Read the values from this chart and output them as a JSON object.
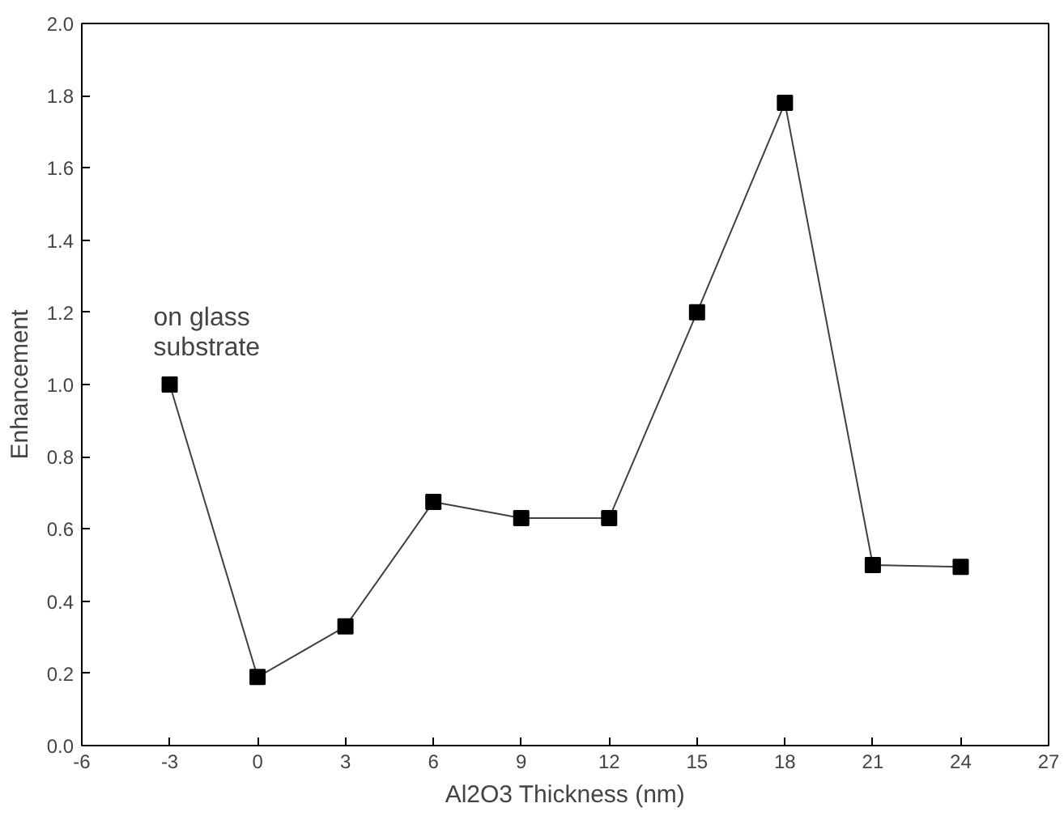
{
  "chart_data": {
    "type": "line",
    "xlabel": "Al2O3 Thickness (nm)",
    "ylabel": "Enhancement",
    "x": [
      -3,
      0,
      3,
      6,
      9,
      12,
      15,
      18,
      21,
      24
    ],
    "series": [
      {
        "color": "#000000",
        "values": [
          1.0,
          0.19,
          0.33,
          0.675,
          0.63,
          0.63,
          1.2,
          1.78,
          0.5,
          0.495
        ]
      }
    ],
    "xlim": [
      -6,
      27
    ],
    "xticks": [
      -6,
      -3,
      0,
      3,
      6,
      9,
      12,
      15,
      18,
      21,
      24,
      27
    ],
    "ylim": [
      0,
      2.0
    ],
    "yticks": [
      {
        "value": 0,
        "label": "0.0"
      },
      {
        "value": 0.2,
        "label": "0.2"
      },
      {
        "value": 0.4,
        "label": "0.4"
      },
      {
        "value": 0.6,
        "label": "0.6"
      },
      {
        "value": 0.8,
        "label": "0.8"
      },
      {
        "value": 1.0,
        "label": "1.0"
      },
      {
        "value": 1.2,
        "label": "1.2"
      },
      {
        "value": 1.4,
        "label": "1.4"
      },
      {
        "value": 1.6,
        "label": "1.6"
      },
      {
        "value": 1.8,
        "label": "1.8"
      },
      {
        "value": 2.0,
        "label": "2.0"
      }
    ],
    "annotations": [
      {
        "text": "on glass\nsubstrate",
        "x": -3,
        "y": 1.0
      }
    ],
    "marker": "square",
    "line_style": "solid",
    "grid": false
  }
}
